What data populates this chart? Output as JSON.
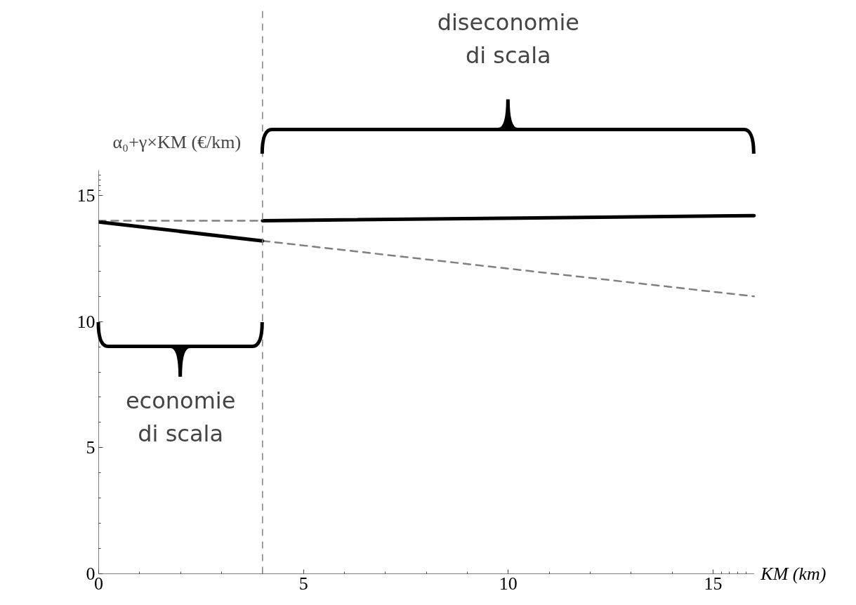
{
  "chart_data": {
    "type": "line",
    "xlabel": "KM (km)",
    "ylabel": "α₀+γ×KM (€/km)",
    "xlim": [
      0,
      16
    ],
    "ylim": [
      0,
      16
    ],
    "xticks": [
      0,
      5,
      10,
      15
    ],
    "yticks": [
      0,
      5,
      10,
      15
    ],
    "grid": false,
    "marker": "none",
    "series": [
      {
        "color": "#808080",
        "line_style": "dashed",
        "x": [
          0,
          4
        ],
        "values": [
          14.0,
          14.0
        ]
      },
      {
        "color": "#808080",
        "line_style": "dashed",
        "x": [
          4,
          16
        ],
        "values": [
          13.2,
          11.0
        ]
      },
      {
        "color": "#000000",
        "line_style": "solid",
        "x": [
          0,
          4
        ],
        "values": [
          13.95,
          13.2
        ]
      },
      {
        "color": "#000000",
        "line_style": "solid",
        "x": [
          4,
          16
        ],
        "values": [
          14.0,
          14.2
        ]
      }
    ],
    "ref_lines": [
      {
        "axis": "x",
        "value": 4,
        "color": "#808080",
        "line_style": "dashed"
      }
    ],
    "annotations": [
      "economie\ndi scala",
      "diseconomie\ndi scala"
    ]
  }
}
